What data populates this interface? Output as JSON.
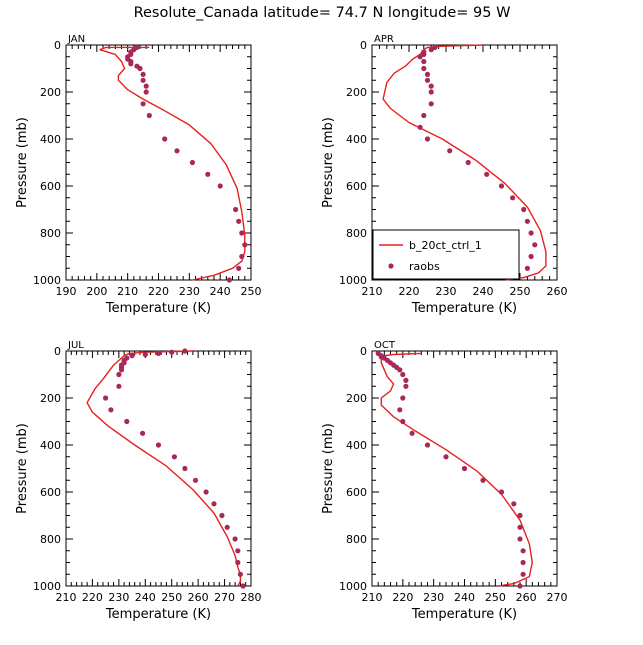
{
  "title": "Resolute_Canada  latitude= 74.7 N longitude= 95 W",
  "colors": {
    "model": "#e8201e",
    "obs": "#a8285a"
  },
  "legend": {
    "model_label": "b_20ct_ctrl_1",
    "obs_label": "raobs"
  },
  "chart_data": [
    {
      "type": "line",
      "panel_label": "JAN",
      "xlabel": "Temperature (K)",
      "ylabel": "Pressure (mb)",
      "xlim": [
        190,
        250
      ],
      "ylim": [
        1000,
        0
      ],
      "xticks": [
        "190",
        "200",
        "210",
        "220",
        "230",
        "240",
        "250"
      ],
      "yticks": [
        "0",
        "200",
        "400",
        "600",
        "800",
        "1000"
      ],
      "series": [
        {
          "name": "b_20ct_ctrl_1",
          "kind": "line",
          "x": [
            217,
            203,
            201,
            206,
            208,
            209,
            207,
            207,
            210,
            215,
            222,
            230,
            237,
            242,
            245.5,
            247,
            248,
            248,
            247,
            244,
            238,
            231
          ],
          "y": [
            10,
            10,
            20,
            40,
            70,
            100,
            130,
            150,
            190,
            230,
            280,
            340,
            420,
            510,
            610,
            710,
            810,
            880,
            920,
            950,
            980,
            1000
          ]
        },
        {
          "name": "raobs",
          "kind": "scatter",
          "x": [
            213,
            212,
            211,
            211,
            210,
            210,
            211,
            211,
            213,
            214,
            215,
            215,
            216,
            216,
            215,
            217,
            222,
            226,
            231,
            236,
            240,
            245,
            246,
            247,
            248,
            247,
            246,
            243
          ],
          "y": [
            10,
            20,
            30,
            40,
            50,
            60,
            70,
            80,
            90,
            100,
            125,
            150,
            175,
            200,
            250,
            300,
            400,
            450,
            500,
            550,
            600,
            700,
            750,
            800,
            850,
            900,
            950,
            1000
          ]
        }
      ]
    },
    {
      "type": "line",
      "panel_label": "APR",
      "xlabel": "Temperature (K)",
      "ylabel": "Pressure (mb)",
      "xlim": [
        210,
        260
      ],
      "ylim": [
        1000,
        0
      ],
      "xticks": [
        "210",
        "220",
        "230",
        "240",
        "250",
        "260"
      ],
      "yticks": [
        "0",
        "200",
        "400",
        "600",
        "800",
        "1000"
      ],
      "series": [
        {
          "name": "b_20ct_ctrl_1",
          "kind": "line",
          "x": [
            240,
            229,
            225,
            224,
            223,
            221,
            219,
            216,
            214,
            213,
            215,
            220,
            229,
            238,
            246,
            252,
            255.5,
            257,
            257,
            255,
            251,
            246
          ],
          "y": [
            0,
            5,
            10,
            20,
            40,
            60,
            90,
            120,
            160,
            230,
            270,
            330,
            400,
            490,
            590,
            690,
            790,
            880,
            940,
            970,
            990,
            1000
          ]
        },
        {
          "name": "raobs",
          "kind": "scatter",
          "x": [
            227,
            226,
            224,
            224,
            223,
            224,
            224,
            225,
            225,
            226,
            226,
            226,
            224,
            223,
            225,
            231,
            236,
            241,
            245,
            248,
            251,
            252,
            253,
            254,
            253,
            252
          ],
          "y": [
            10,
            20,
            30,
            40,
            50,
            70,
            100,
            125,
            150,
            175,
            200,
            250,
            300,
            350,
            400,
            450,
            500,
            550,
            600,
            650,
            700,
            750,
            800,
            850,
            900,
            950
          ]
        }
      ]
    },
    {
      "type": "line",
      "panel_label": "JUL",
      "xlabel": "Temperature (K)",
      "ylabel": "Pressure (mb)",
      "xlim": [
        210,
        280
      ],
      "ylim": [
        1000,
        0
      ],
      "xticks": [
        "210",
        "220",
        "230",
        "240",
        "250",
        "260",
        "270",
        "280"
      ],
      "yticks": [
        "0",
        "200",
        "400",
        "600",
        "800",
        "1000"
      ],
      "series": [
        {
          "name": "b_20ct_ctrl_1",
          "kind": "line",
          "x": [
            258,
            240,
            234,
            232,
            230,
            228,
            226,
            224,
            221,
            218,
            220,
            226,
            236,
            248,
            258,
            266,
            271,
            274,
            275,
            276,
            276,
            275
          ],
          "y": [
            0,
            5,
            10,
            20,
            40,
            60,
            90,
            120,
            160,
            220,
            260,
            320,
            400,
            490,
            590,
            690,
            790,
            870,
            920,
            950,
            980,
            1000
          ]
        },
        {
          "name": "raobs",
          "kind": "scatter",
          "x": [
            255,
            250,
            245,
            240,
            235,
            233,
            232,
            232,
            231,
            231,
            231,
            230,
            230,
            225,
            227,
            233,
            239,
            245,
            251,
            255,
            259,
            263,
            266,
            269,
            271,
            274,
            275,
            275,
            276,
            277
          ],
          "y": [
            0,
            5,
            10,
            15,
            20,
            30,
            40,
            50,
            60,
            70,
            80,
            100,
            150,
            200,
            250,
            300,
            350,
            400,
            450,
            500,
            550,
            600,
            650,
            700,
            750,
            800,
            850,
            900,
            950,
            1000
          ]
        }
      ]
    },
    {
      "type": "line",
      "panel_label": "OCT",
      "xlabel": "Temperature (K)",
      "ylabel": "Pressure (mb)",
      "xlim": [
        210,
        270
      ],
      "ylim": [
        1000,
        0
      ],
      "xticks": [
        "210",
        "220",
        "230",
        "240",
        "250",
        "260",
        "270"
      ],
      "yticks": [
        "0",
        "200",
        "400",
        "600",
        "800",
        "1000"
      ],
      "series": [
        {
          "name": "b_20ct_ctrl_1",
          "kind": "line",
          "x": [
            226,
            217,
            214,
            213,
            213,
            214,
            215,
            217,
            216,
            213,
            213,
            217,
            224,
            234,
            244,
            252,
            258,
            261,
            262,
            261,
            256,
            251
          ],
          "y": [
            10,
            15,
            20,
            30,
            50,
            80,
            110,
            140,
            170,
            200,
            230,
            280,
            340,
            420,
            510,
            610,
            720,
            820,
            900,
            960,
            990,
            1000
          ]
        },
        {
          "name": "raobs",
          "kind": "scatter",
          "x": [
            212,
            213,
            213,
            214,
            215,
            216,
            217,
            218,
            219,
            220,
            221,
            221,
            220,
            219,
            220,
            223,
            228,
            234,
            240,
            246,
            252,
            256,
            258,
            258,
            258,
            259,
            259,
            259,
            258
          ],
          "y": [
            10,
            20,
            25,
            30,
            40,
            50,
            60,
            70,
            80,
            100,
            125,
            150,
            200,
            250,
            300,
            350,
            400,
            450,
            500,
            550,
            600,
            650,
            700,
            750,
            800,
            850,
            900,
            950,
            1000
          ]
        }
      ]
    }
  ]
}
